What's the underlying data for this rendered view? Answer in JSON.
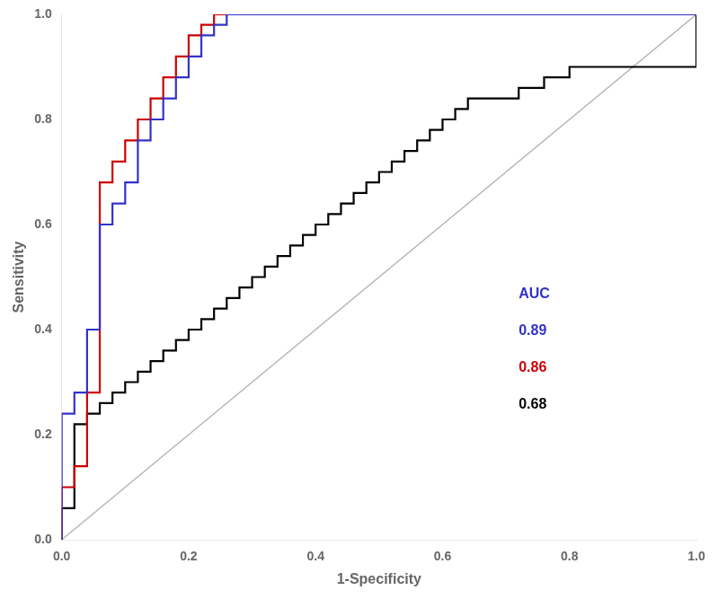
{
  "chart_data": {
    "type": "line",
    "xlabel": "1-Specificity",
    "ylabel": "Sensitivity",
    "xlim": [
      0.0,
      1.0
    ],
    "ylim": [
      0.0,
      1.0
    ],
    "xticks": [
      {
        "value": 0.0,
        "label": "0.0"
      },
      0.2,
      0.4,
      0.6,
      0.8,
      {
        "value": 1.0,
        "label": "1.0"
      }
    ],
    "yticks": [
      {
        "value": 0.0,
        "label": "0.0"
      },
      0.2,
      0.4,
      0.6,
      0.8,
      {
        "value": 1.0,
        "label": "1.0"
      }
    ],
    "grid": false,
    "series": [
      {
        "color": "#b8b8b8",
        "line_style": "solid",
        "x": [
          0,
          1
        ],
        "values": [
          0,
          1
        ]
      },
      {
        "color": "#3232c8",
        "line_style": "step",
        "x": [
          0.0,
          0.0,
          0.02,
          0.02,
          0.04,
          0.04,
          0.06,
          0.06,
          0.06,
          0.08,
          0.08,
          0.1,
          0.1,
          0.12,
          0.12,
          0.14,
          0.14,
          0.16,
          0.16,
          0.18,
          0.18,
          0.2,
          0.2,
          0.22,
          0.22,
          0.24,
          0.24,
          0.26,
          0.26,
          0.28,
          0.28,
          0.3,
          0.3,
          0.32,
          0.34,
          0.36,
          0.38,
          0.4,
          0.42,
          0.44,
          0.46,
          1.0
        ],
        "values": [
          0.0,
          0.24,
          0.24,
          0.28,
          0.28,
          0.4,
          0.4,
          0.44,
          0.6,
          0.6,
          0.64,
          0.64,
          0.68,
          0.68,
          0.76,
          0.76,
          0.8,
          0.8,
          0.84,
          0.84,
          0.88,
          0.88,
          0.92,
          0.92,
          0.96,
          0.96,
          0.98,
          0.98,
          1.0,
          1.0,
          1.0,
          1.0,
          1.0,
          1.0,
          1.0,
          1.0,
          1.0,
          1.0,
          1.0,
          1.0,
          1.0,
          1.0
        ]
      },
      {
        "color": "#cc0000",
        "line_style": "step",
        "x": [
          0.0,
          0.0,
          0.02,
          0.02,
          0.04,
          0.04,
          0.06,
          0.06,
          0.08,
          0.08,
          0.1,
          0.1,
          0.12,
          0.12,
          0.14,
          0.14,
          0.16,
          0.16,
          0.18,
          0.18,
          0.2,
          0.2,
          0.22,
          0.22,
          0.24,
          0.24,
          0.26,
          0.26,
          0.28,
          0.3,
          0.32,
          0.34,
          0.36,
          0.38,
          0.4,
          0.42,
          0.44,
          0.46,
          0.48,
          1.0
        ],
        "values": [
          0.0,
          0.1,
          0.1,
          0.14,
          0.14,
          0.28,
          0.28,
          0.68,
          0.68,
          0.72,
          0.72,
          0.76,
          0.76,
          0.8,
          0.8,
          0.84,
          0.84,
          0.88,
          0.88,
          0.92,
          0.92,
          0.96,
          0.96,
          0.98,
          0.98,
          1.0,
          1.0,
          1.0,
          1.0,
          1.0,
          1.0,
          1.0,
          1.0,
          1.0,
          1.0,
          1.0,
          1.0,
          1.0,
          1.0,
          1.0
        ]
      },
      {
        "color": "#000000",
        "line_style": "step",
        "x": [
          0.0,
          0.0,
          0.02,
          0.02,
          0.04,
          0.04,
          0.06,
          0.06,
          0.08,
          0.08,
          0.1,
          0.1,
          0.12,
          0.12,
          0.14,
          0.14,
          0.16,
          0.16,
          0.18,
          0.18,
          0.2,
          0.2,
          0.22,
          0.22,
          0.24,
          0.24,
          0.26,
          0.26,
          0.28,
          0.28,
          0.3,
          0.3,
          0.32,
          0.32,
          0.34,
          0.34,
          0.36,
          0.36,
          0.38,
          0.38,
          0.4,
          0.4,
          0.42,
          0.42,
          0.44,
          0.44,
          0.46,
          0.46,
          0.48,
          0.48,
          0.5,
          0.5,
          0.52,
          0.52,
          0.54,
          0.54,
          0.56,
          0.56,
          0.58,
          0.58,
          0.6,
          0.6,
          0.62,
          0.62,
          0.64,
          0.64,
          0.66,
          0.68,
          0.7,
          0.72,
          0.74,
          0.76,
          0.78,
          0.8,
          0.82,
          0.84,
          0.86,
          0.88,
          0.9,
          0.92,
          0.94,
          0.96,
          1.0
        ],
        "values": [
          0.0,
          0.06,
          0.06,
          0.22,
          0.22,
          0.24,
          0.24,
          0.26,
          0.26,
          0.28,
          0.28,
          0.3,
          0.3,
          0.32,
          0.32,
          0.34,
          0.34,
          0.36,
          0.36,
          0.38,
          0.38,
          0.4,
          0.4,
          0.42,
          0.42,
          0.44,
          0.44,
          0.46,
          0.46,
          0.48,
          0.48,
          0.5,
          0.5,
          0.52,
          0.52,
          0.54,
          0.54,
          0.56,
          0.56,
          0.58,
          0.58,
          0.6,
          0.6,
          0.62,
          0.62,
          0.64,
          0.64,
          0.66,
          0.66,
          0.68,
          0.68,
          0.7,
          0.7,
          0.72,
          0.72,
          0.74,
          0.74,
          0.76,
          0.76,
          0.78,
          0.78,
          0.8,
          0.8,
          0.82,
          0.82,
          0.84,
          0.84,
          0.84,
          0.84,
          0.86,
          0.86,
          0.88,
          0.88,
          0.9,
          0.9,
          0.9,
          0.9,
          0.9,
          0.9,
          0.9,
          0.9,
          0.9,
          1.0
        ]
      }
    ],
    "annotations": [
      {
        "text": "AUC",
        "color": "#3232c8"
      },
      {
        "text": "0.89",
        "color": "#3232c8"
      },
      {
        "text": "0.86",
        "color": "#cc0000"
      },
      {
        "text": "0.68",
        "color": "#000000"
      }
    ]
  }
}
